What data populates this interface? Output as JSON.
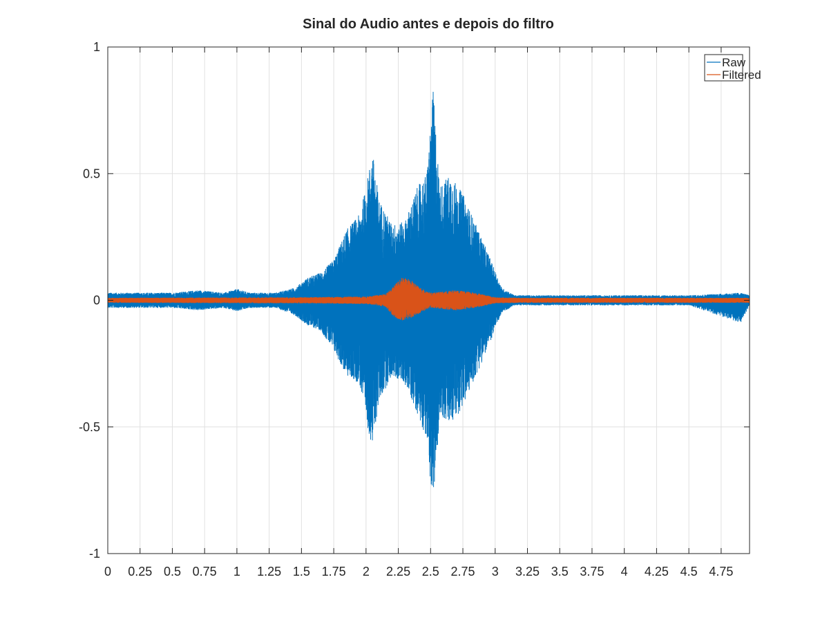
{
  "chart_data": {
    "type": "line",
    "title": "Sinal do Audio antes e depois do filtro",
    "xlabel": "",
    "ylabel": "",
    "xlim": [
      0,
      4.97
    ],
    "ylim": [
      -1,
      1
    ],
    "grid": true,
    "legend_position": "top-right",
    "xticks": [
      0,
      0.25,
      0.5,
      0.75,
      1,
      1.25,
      1.5,
      1.75,
      2,
      2.25,
      2.5,
      2.75,
      3,
      3.25,
      3.5,
      3.75,
      4,
      4.25,
      4.5,
      4.75
    ],
    "xtick_labels": [
      "0",
      "0.25",
      "0.5",
      "0.75",
      "1",
      "1.25",
      "1.5",
      "1.75",
      "2",
      "2.25",
      "2.5",
      "2.75",
      "3",
      "3.25",
      "3.5",
      "3.75",
      "4",
      "4.25",
      "4.5",
      "4.75"
    ],
    "yticks": [
      -1,
      -0.5,
      0,
      0.5,
      1
    ],
    "ytick_labels": [
      "-1",
      "-0.5",
      "0",
      "0.5",
      "1"
    ],
    "series": [
      {
        "name": "Raw",
        "color": "#0072BD",
        "envelope": {
          "t": [
            0,
            0.5,
            0.7,
            0.9,
            1.0,
            1.1,
            1.3,
            1.45,
            1.55,
            1.65,
            1.75,
            1.85,
            1.95,
            2.0,
            2.05,
            2.1,
            2.2,
            2.3,
            2.4,
            2.47,
            2.52,
            2.57,
            2.65,
            2.75,
            2.85,
            2.95,
            3.05,
            3.15,
            3.5,
            4.0,
            4.5,
            4.9,
            4.97
          ],
          "pos": [
            0.03,
            0.03,
            0.04,
            0.03,
            0.045,
            0.03,
            0.03,
            0.05,
            0.09,
            0.11,
            0.16,
            0.28,
            0.34,
            0.45,
            0.59,
            0.4,
            0.3,
            0.31,
            0.45,
            0.5,
            0.83,
            0.45,
            0.5,
            0.42,
            0.3,
            0.18,
            0.05,
            0.02,
            0.02,
            0.02,
            0.02,
            0.03,
            0.02
          ],
          "neg": [
            -0.03,
            -0.03,
            -0.04,
            -0.03,
            -0.045,
            -0.03,
            -0.03,
            -0.06,
            -0.1,
            -0.12,
            -0.2,
            -0.3,
            -0.33,
            -0.48,
            -0.58,
            -0.4,
            -0.3,
            -0.33,
            -0.45,
            -0.55,
            -0.83,
            -0.45,
            -0.5,
            -0.42,
            -0.3,
            -0.18,
            -0.05,
            -0.02,
            -0.02,
            -0.02,
            -0.02,
            -0.09,
            -0.02
          ]
        }
      },
      {
        "name": "Filtered",
        "color": "#D95319",
        "envelope": {
          "t": [
            0,
            1.5,
            2.0,
            2.15,
            2.22,
            2.28,
            2.35,
            2.42,
            2.5,
            2.6,
            2.7,
            2.78,
            2.85,
            3.0,
            3.2,
            4.97
          ],
          "pos": [
            0.01,
            0.012,
            0.015,
            0.025,
            0.06,
            0.09,
            0.08,
            0.05,
            0.03,
            0.035,
            0.04,
            0.035,
            0.03,
            0.012,
            0.01,
            0.01
          ],
          "neg": [
            -0.01,
            -0.012,
            -0.015,
            -0.025,
            -0.07,
            -0.08,
            -0.07,
            -0.05,
            -0.03,
            -0.035,
            -0.04,
            -0.035,
            -0.03,
            -0.012,
            -0.01,
            -0.01
          ]
        }
      }
    ]
  }
}
